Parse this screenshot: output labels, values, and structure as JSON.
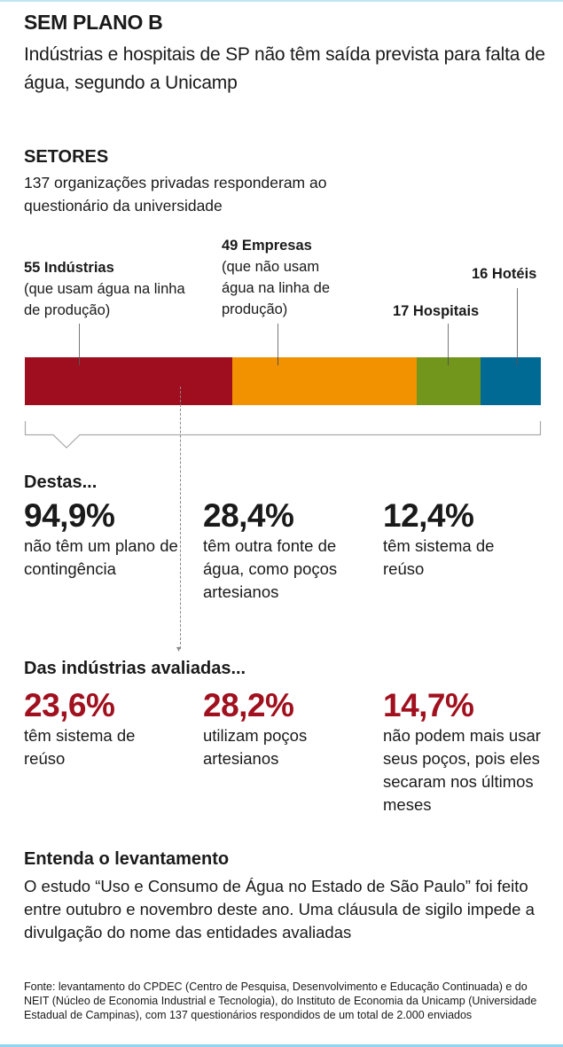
{
  "header": {
    "title": "SEM PLANO B",
    "subtitle": "Indústrias e hospitais de SP não têm saída prevista para falta de água, segundo a Unicamp"
  },
  "sectors": {
    "heading": "SETORES",
    "subheading": "137 organizações privadas responderam ao questionário da universidade"
  },
  "chart_data": {
    "type": "bar",
    "orientation": "horizontal-stacked",
    "total": 137,
    "categories": [
      "Indústrias",
      "Empresas",
      "Hospitais",
      "Hotéis"
    ],
    "values": [
      55,
      49,
      17,
      16
    ],
    "labels": [
      {
        "title": "55 Indústrias",
        "note": "(que usam água na linha de produção)"
      },
      {
        "title": "49 Empresas",
        "note": "(que não usam água na linha de produção)"
      },
      {
        "title": "17 Hospitais",
        "note": ""
      },
      {
        "title": "16 Hotéis",
        "note": ""
      }
    ],
    "colors": [
      "#9e0e1e",
      "#f29200",
      "#72961c",
      "#006a94"
    ]
  },
  "destas": {
    "heading": "Destas...",
    "stats": [
      {
        "value": "94,9%",
        "text": "não têm um plano de contingência"
      },
      {
        "value": "28,4%",
        "text": "têm outra fonte de água, como poços artesianos"
      },
      {
        "value": "12,4%",
        "text": "têm sistema de reúso"
      }
    ]
  },
  "industrias": {
    "heading": "Das indústrias avaliadas...",
    "stats": [
      {
        "value": "23,6%",
        "text": "têm sistema de reúso"
      },
      {
        "value": "28,2%",
        "text": "utilizam poços artesianos"
      },
      {
        "value": "14,7%",
        "text": "não podem mais usar seus poços, pois eles secaram nos últimos meses"
      }
    ]
  },
  "about": {
    "heading": "Entenda o levantamento",
    "text": "O estudo “Uso e Consumo de Água no Estado de São Paulo” foi feito entre outubro e novembro deste ano. Uma cláusula de sigilo impede a divulgação do nome das entidades avaliadas"
  },
  "source": "Fonte: levantamento do CPDEC (Centro de Pesquisa, Desenvolvimento e Educação Continuada) e do NEIT (Núcleo de Economia Industrial e Tecnologia), do Instituto de Economia da Unicamp (Universidade Estadual de Campinas), com 137 questionários respondidos de um total de 2.000 enviados"
}
